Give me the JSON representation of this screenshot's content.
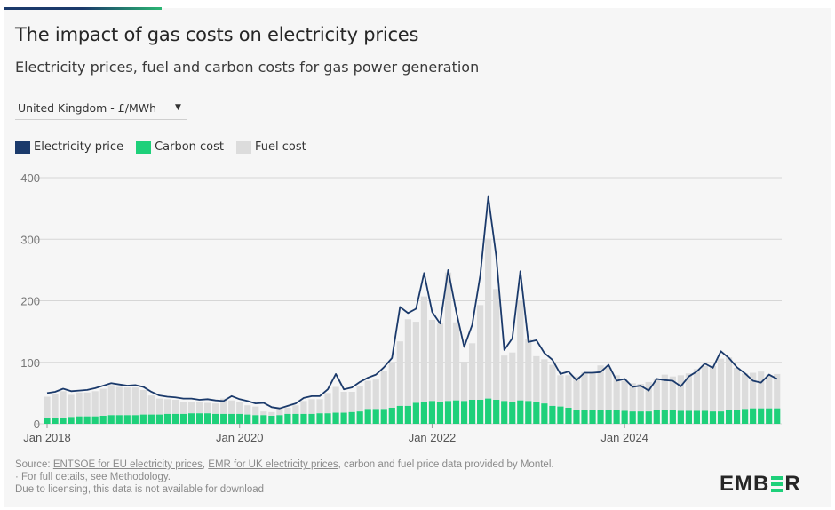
{
  "header": {
    "title": "The impact of gas costs on electricity prices",
    "subtitle": "Electricity prices, fuel and carbon costs for gas power generation"
  },
  "selector": {
    "value": "United Kingdom - £/MWh",
    "icon": "caret-down-icon"
  },
  "colors": {
    "electricity": "#1b3a6b",
    "carbon": "#1ed07a",
    "fuel": "#dcdcdc",
    "accent_start": "#1b3a6b",
    "accent_end": "#2bb673"
  },
  "footer": {
    "source_prefix": "Source: ",
    "link1": "ENTSOE for EU electricity prices",
    "sep": ", ",
    "link2": "EMR for UK electricity prices",
    "source_suffix": ", carbon and fuel price data provided by Montel.",
    "line2": "· For full details, see Methodology.",
    "line3": "Due to licensing, this data is not available for download"
  },
  "logo": {
    "text": "EMBER"
  },
  "chart_data": {
    "type": "bar",
    "stacked": true,
    "xlabel": "",
    "ylabel": "",
    "ylim": [
      0,
      400
    ],
    "y_ticks": [
      0,
      100,
      200,
      300,
      400
    ],
    "grid": true,
    "legend_position": "top-left",
    "x_start": "Jan 2018",
    "x_end": "Aug 2025",
    "x_frequency": "monthly",
    "x_ticks": [
      {
        "label": "Jan 2018",
        "index": 0
      },
      {
        "label": "Jan 2020",
        "index": 24
      },
      {
        "label": "Jan 2022",
        "index": 48
      },
      {
        "label": "Jan 2024",
        "index": 72
      }
    ],
    "series": [
      {
        "name": "Electricity price",
        "type": "line",
        "values": [
          50,
          52,
          57,
          53,
          54,
          55,
          58,
          62,
          66,
          64,
          62,
          63,
          60,
          52,
          46,
          44,
          43,
          41,
          41,
          39,
          40,
          38,
          37,
          45,
          40,
          37,
          33,
          34,
          27,
          25,
          29,
          33,
          42,
          45,
          45,
          56,
          81,
          56,
          59,
          68,
          75,
          80,
          92,
          107,
          190,
          180,
          187,
          245,
          182,
          163,
          250,
          183,
          125,
          161,
          241,
          369,
          272,
          120,
          139,
          248,
          133,
          136,
          115,
          104,
          81,
          85,
          71,
          83,
          83,
          84,
          96,
          70,
          73,
          60,
          62,
          54,
          73,
          71,
          70,
          61,
          77,
          85,
          98,
          91,
          118,
          107,
          92,
          82,
          70,
          67,
          80,
          73
        ]
      },
      {
        "name": "Carbon cost",
        "type": "bar",
        "values": [
          9,
          10,
          10,
          11,
          12,
          12,
          12,
          13,
          14,
          14,
          14,
          14,
          15,
          15,
          15,
          16,
          16,
          16,
          17,
          17,
          17,
          16,
          16,
          16,
          16,
          15,
          14,
          14,
          13,
          14,
          16,
          16,
          16,
          16,
          17,
          17,
          18,
          18,
          19,
          20,
          24,
          24,
          24,
          26,
          29,
          29,
          34,
          35,
          37,
          35,
          37,
          38,
          37,
          39,
          39,
          41,
          39,
          37,
          36,
          38,
          37,
          36,
          33,
          29,
          28,
          26,
          23,
          22,
          23,
          23,
          22,
          22,
          21,
          20,
          20,
          20,
          22,
          23,
          22,
          21,
          21,
          21,
          21,
          20,
          20,
          23,
          23,
          24,
          25,
          25,
          25,
          25
        ]
      },
      {
        "name": "Fuel cost",
        "type": "bar",
        "values": [
          35,
          39,
          43,
          36,
          39,
          39,
          41,
          44,
          49,
          46,
          45,
          45,
          40,
          31,
          26,
          24,
          23,
          19,
          19,
          18,
          17,
          17,
          25,
          22,
          19,
          15,
          14,
          6,
          6,
          10,
          10,
          14,
          21,
          24,
          23,
          33,
          42,
          34,
          33,
          41,
          46,
          48,
          62,
          74,
          105,
          141,
          132,
          172,
          132,
          128,
          209,
          127,
          64,
          92,
          154,
          260,
          180,
          74,
          80,
          162,
          101,
          74,
          72,
          67,
          51,
          53,
          54,
          62,
          59,
          72,
          69,
          57,
          49,
          46,
          45,
          48,
          50,
          57,
          55,
          58,
          61,
          68,
          73,
          74,
          86,
          85,
          68,
          58,
          58,
          60,
          54,
          56
        ]
      }
    ]
  }
}
